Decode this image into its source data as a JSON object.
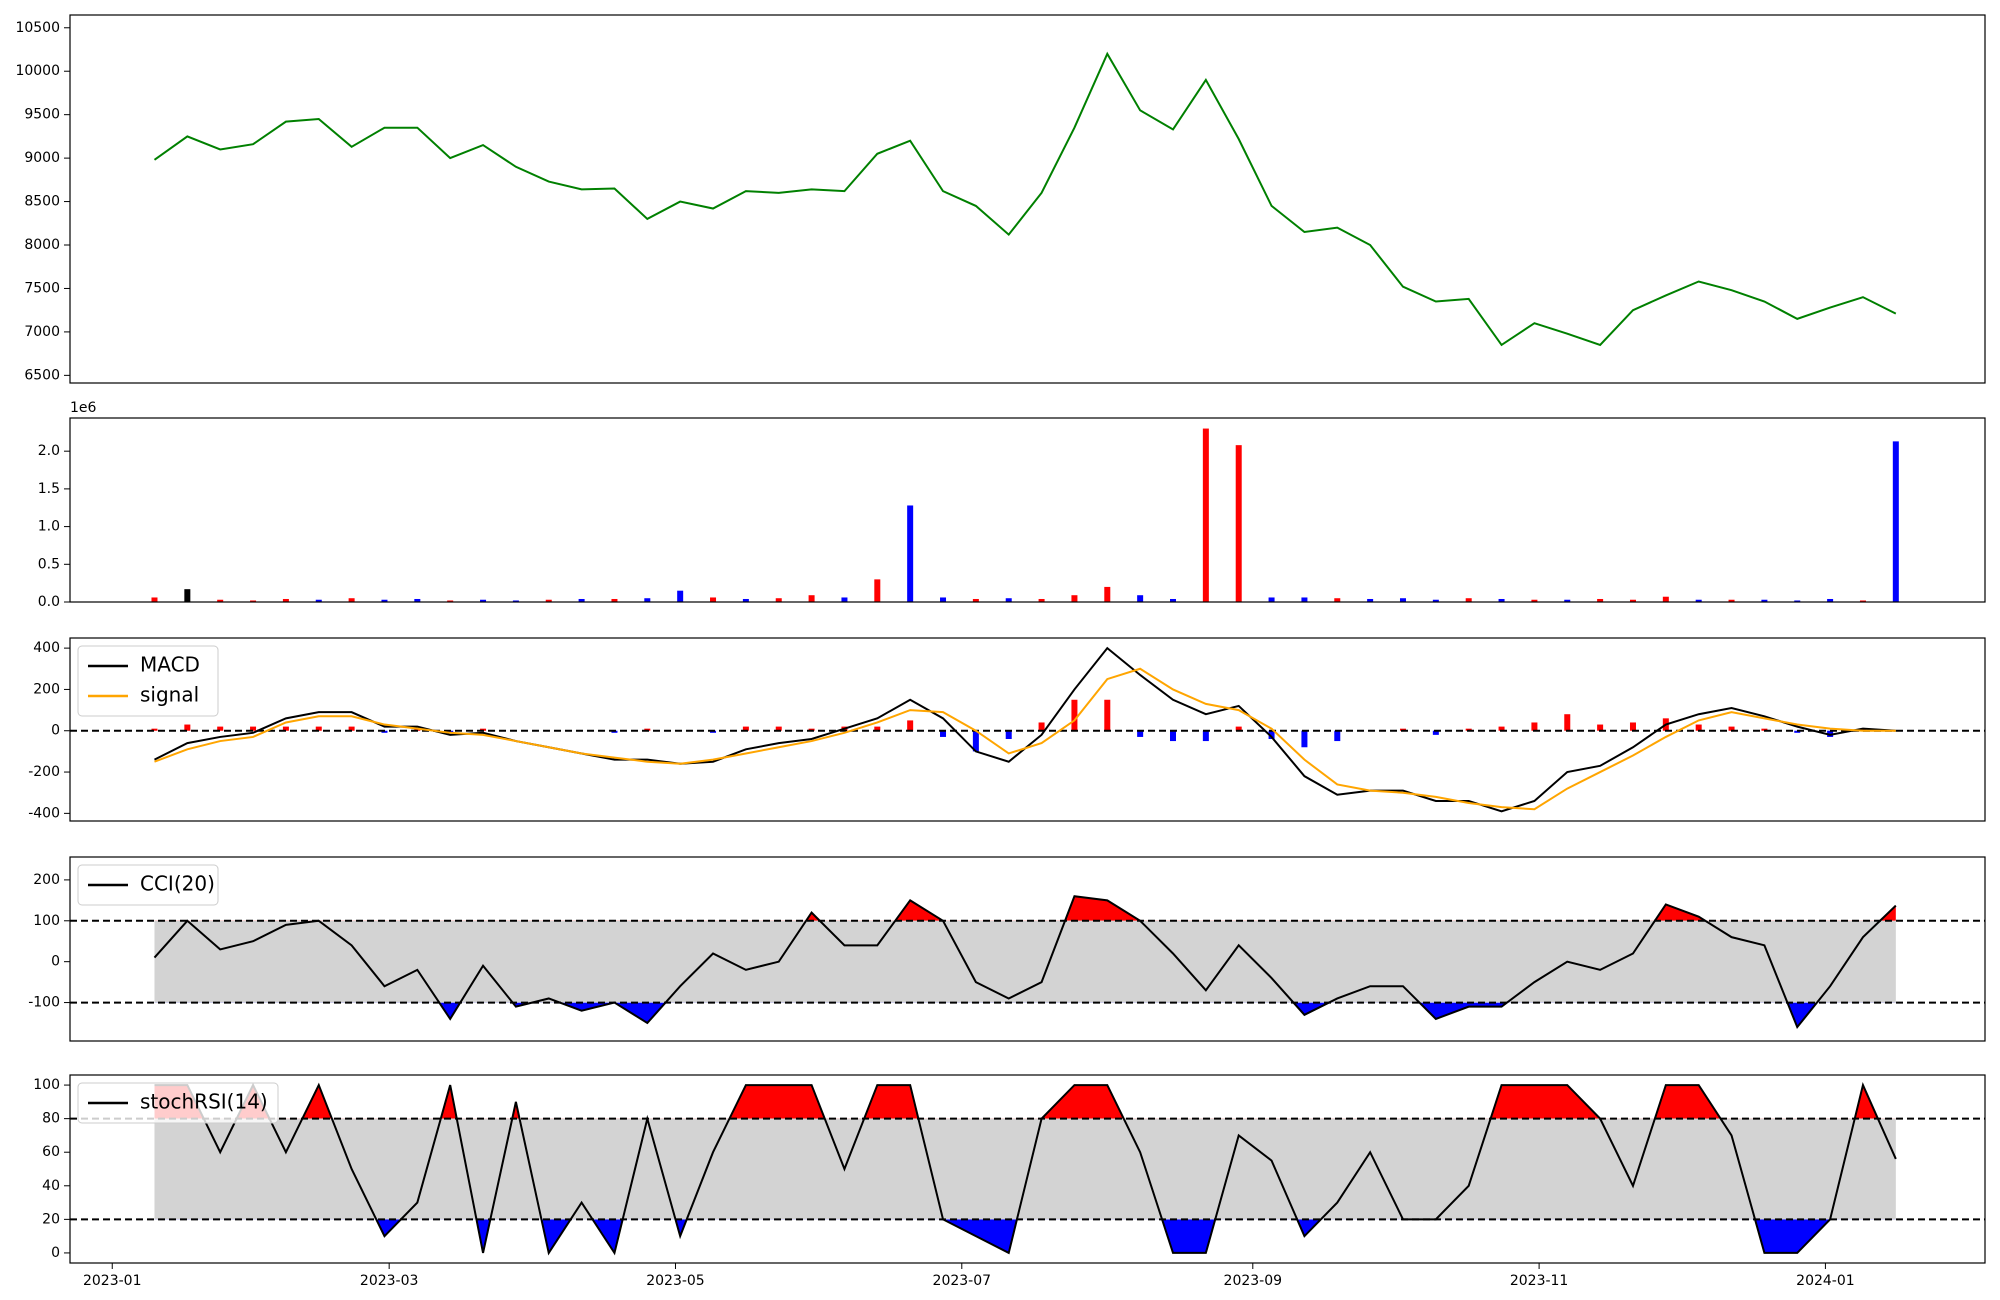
{
  "chart_data": [
    {
      "type": "line",
      "x": [
        9,
        16,
        23,
        30,
        37,
        44,
        51,
        58,
        65,
        72,
        79,
        86,
        93,
        100,
        107,
        114,
        121,
        128,
        135,
        142,
        149,
        156,
        163,
        170,
        177,
        184,
        191,
        198,
        205,
        212,
        219,
        226,
        233,
        240,
        247,
        254,
        261,
        268,
        275,
        282,
        289,
        296,
        303,
        310,
        317,
        324,
        331,
        338,
        345,
        352,
        359,
        366,
        373,
        380
      ],
      "xlim": [
        -9,
        399
      ],
      "series": [
        {
          "color": "#008000",
          "values": [
            8980,
            9250,
            9100,
            9160,
            9420,
            9450,
            9130,
            9350,
            9350,
            9000,
            9150,
            8900,
            8730,
            8640,
            8650,
            8300,
            8500,
            8420,
            8620,
            8600,
            8640,
            8620,
            9050,
            9200,
            8620,
            8450,
            8120,
            8600,
            9350,
            10200,
            9550,
            9330,
            9900,
            9220,
            8450,
            8150,
            8200,
            8000,
            7520,
            7350,
            7380,
            6850,
            7100,
            6980,
            6850,
            7250,
            7420,
            7580,
            7480,
            7350,
            7150,
            7280,
            7400,
            7210
          ]
        }
      ],
      "ylim": [
        6412,
        10647
      ],
      "yticks": [
        6500,
        7000,
        7500,
        8000,
        8500,
        9000,
        9500,
        10000,
        10500
      ]
    },
    {
      "type": "bar",
      "x": [
        9,
        16,
        23,
        30,
        37,
        44,
        51,
        58,
        65,
        72,
        79,
        86,
        93,
        100,
        107,
        114,
        121,
        128,
        135,
        142,
        149,
        156,
        163,
        170,
        177,
        184,
        191,
        198,
        205,
        212,
        219,
        226,
        233,
        240,
        247,
        254,
        261,
        268,
        275,
        282,
        289,
        296,
        303,
        310,
        317,
        324,
        331,
        338,
        345,
        352,
        359,
        366,
        373,
        380
      ],
      "xlim": [
        -9,
        399
      ],
      "series": [
        {
          "values": [
            60000,
            170000,
            30000,
            20000,
            40000,
            30000,
            50000,
            30000,
            40000,
            20000,
            30000,
            20000,
            30000,
            40000,
            40000,
            50000,
            150000,
            60000,
            40000,
            50000,
            90000,
            60000,
            300000,
            1280000,
            60000,
            40000,
            50000,
            40000,
            90000,
            200000,
            90000,
            40000,
            2300000,
            2080000,
            60000,
            60000,
            50000,
            40000,
            50000,
            30000,
            50000,
            40000,
            30000,
            30000,
            40000,
            30000,
            70000,
            30000,
            30000,
            30000,
            20000,
            40000,
            20000,
            2130000
          ],
          "colors": [
            "#ff0000",
            "#000000",
            "#ff0000",
            "#ff0000",
            "#ff0000",
            "#0000ff",
            "#ff0000",
            "#0000ff",
            "#0000ff",
            "#ff0000",
            "#0000ff",
            "#0000ff",
            "#ff0000",
            "#0000ff",
            "#ff0000",
            "#0000ff",
            "#0000ff",
            "#ff0000",
            "#0000ff",
            "#ff0000",
            "#ff0000",
            "#0000ff",
            "#ff0000",
            "#0000ff",
            "#0000ff",
            "#ff0000",
            "#0000ff",
            "#ff0000",
            "#ff0000",
            "#ff0000",
            "#0000ff",
            "#0000ff",
            "#ff0000",
            "#ff0000",
            "#0000ff",
            "#0000ff",
            "#ff0000",
            "#0000ff",
            "#0000ff",
            "#0000ff",
            "#ff0000",
            "#0000ff",
            "#ff0000",
            "#0000ff",
            "#ff0000",
            "#ff0000",
            "#ff0000",
            "#0000ff",
            "#ff0000",
            "#0000ff",
            "#0000ff",
            "#0000ff",
            "#ff0000",
            "#0000ff"
          ]
        }
      ],
      "ylim": [
        0,
        2440000
      ],
      "yticks": [
        {
          "value": 0,
          "label": "0.0"
        },
        {
          "value": 500000,
          "label": "0.5"
        },
        {
          "value": 1000000,
          "label": "1.0"
        },
        {
          "value": 1500000,
          "label": "1.5"
        },
        {
          "value": 2000000,
          "label": "2.0"
        }
      ],
      "y_offset_label": "1e6"
    },
    {
      "type": "line",
      "x": [
        9,
        16,
        23,
        30,
        37,
        44,
        51,
        58,
        65,
        72,
        79,
        86,
        93,
        100,
        107,
        114,
        121,
        128,
        135,
        142,
        149,
        156,
        163,
        170,
        177,
        184,
        191,
        198,
        205,
        212,
        219,
        226,
        233,
        240,
        247,
        254,
        261,
        268,
        275,
        282,
        289,
        296,
        303,
        310,
        317,
        324,
        331,
        338,
        345,
        352,
        359,
        366,
        373,
        380
      ],
      "xlim": [
        -9,
        399
      ],
      "series": [
        {
          "name": "MACD",
          "color": "#000000",
          "values": [
            -140,
            -60,
            -30,
            -10,
            60,
            90,
            90,
            20,
            20,
            -20,
            -10,
            -50,
            -80,
            -110,
            -140,
            -140,
            -160,
            -150,
            -90,
            -60,
            -40,
            10,
            60,
            150,
            60,
            -100,
            -150,
            -20,
            200,
            400,
            270,
            150,
            80,
            120,
            -30,
            -220,
            -310,
            -290,
            -290,
            -340,
            -340,
            -390,
            -340,
            -200,
            -170,
            -80,
            30,
            80,
            110,
            70,
            20,
            -20,
            10,
            0
          ]
        },
        {
          "name": "signal",
          "color": "#ffa500",
          "values": [
            -150,
            -90,
            -50,
            -30,
            40,
            70,
            70,
            30,
            10,
            -10,
            -20,
            -50,
            -80,
            -110,
            -130,
            -150,
            -160,
            -140,
            -110,
            -80,
            -50,
            -10,
            40,
            100,
            90,
            0,
            -110,
            -60,
            50,
            250,
            300,
            200,
            130,
            100,
            10,
            -140,
            -260,
            -290,
            -300,
            -320,
            -350,
            -370,
            -380,
            -280,
            -200,
            -120,
            -30,
            50,
            90,
            60,
            30,
            10,
            0,
            0
          ]
        }
      ],
      "histogram": {
        "pos_color": "#ff0000",
        "neg_color": "#0000ff",
        "values": [
          10,
          30,
          20,
          20,
          20,
          20,
          20,
          -10,
          10,
          -10,
          10,
          0,
          0,
          0,
          -10,
          10,
          0,
          -10,
          20,
          20,
          10,
          20,
          20,
          50,
          -30,
          -100,
          -40,
          40,
          150,
          150,
          -30,
          -50,
          -50,
          20,
          -40,
          -80,
          -50,
          0,
          10,
          -20,
          10,
          20,
          40,
          80,
          30,
          40,
          60,
          30,
          20,
          10,
          -10,
          -30,
          10,
          0
        ]
      },
      "reference_lines": [
        0
      ],
      "ylim": [
        -437,
        449
      ],
      "yticks": [
        -400,
        -200,
        0,
        200,
        400
      ],
      "legend": "upper left"
    },
    {
      "type": "line",
      "x": [
        9,
        16,
        23,
        30,
        37,
        44,
        51,
        58,
        65,
        72,
        79,
        86,
        93,
        100,
        107,
        114,
        121,
        128,
        135,
        142,
        149,
        156,
        163,
        170,
        177,
        184,
        191,
        198,
        205,
        212,
        219,
        226,
        233,
        240,
        247,
        254,
        261,
        268,
        275,
        282,
        289,
        296,
        303,
        310,
        317,
        324,
        331,
        338,
        345,
        352,
        359,
        366,
        373,
        380
      ],
      "xlim": [
        -9,
        399
      ],
      "series": [
        {
          "name": "CCI(20)",
          "color": "#000000",
          "values": [
            10,
            100,
            30,
            50,
            90,
            100,
            40,
            -60,
            -20,
            -140,
            -10,
            -110,
            -90,
            -120,
            -100,
            -150,
            -60,
            20,
            -20,
            0,
            120,
            40,
            40,
            150,
            100,
            -50,
            -90,
            -50,
            160,
            150,
            100,
            20,
            -70,
            40,
            -40,
            -130,
            -90,
            -60,
            -60,
            -140,
            -110,
            -110,
            -50,
            0,
            -20,
            20,
            140,
            110,
            60,
            40,
            -160,
            -60,
            60,
            137
          ]
        }
      ],
      "reference_lines": [
        -100,
        100
      ],
      "fill": {
        "band_color": "#d3d3d3",
        "upper_color": "#ff0000",
        "lower_color": "#0000ff"
      },
      "ylim": [
        -194,
        256
      ],
      "yticks": [
        -100,
        0,
        100,
        200
      ],
      "legend": "upper left"
    },
    {
      "type": "line",
      "x": [
        9,
        16,
        23,
        30,
        37,
        44,
        51,
        58,
        65,
        72,
        79,
        86,
        93,
        100,
        107,
        114,
        121,
        128,
        135,
        142,
        149,
        156,
        163,
        170,
        177,
        184,
        191,
        198,
        205,
        212,
        219,
        226,
        233,
        240,
        247,
        254,
        261,
        268,
        275,
        282,
        289,
        296,
        303,
        310,
        317,
        324,
        331,
        338,
        345,
        352,
        359,
        366,
        373,
        380
      ],
      "xlim": [
        -9,
        399
      ],
      "series": [
        {
          "name": "stochRSI(14)",
          "color": "#000000",
          "values": [
            100,
            100,
            60,
            100,
            60,
            100,
            50,
            10,
            30,
            100,
            0,
            90,
            0,
            30,
            0,
            80,
            10,
            60,
            100,
            100,
            100,
            50,
            100,
            100,
            20,
            10,
            0,
            80,
            100,
            100,
            60,
            0,
            0,
            70,
            55,
            10,
            30,
            60,
            20,
            20,
            40,
            100,
            100,
            100,
            80,
            40,
            100,
            100,
            70,
            0,
            0,
            20,
            100,
            56
          ]
        }
      ],
      "reference_lines": [
        20,
        80
      ],
      "fill": {
        "band_color": "#d3d3d3",
        "upper_color": "#ff0000",
        "lower_color": "#0000ff"
      },
      "ylim": [
        -6,
        106
      ],
      "yticks": [
        0,
        20,
        40,
        60,
        80,
        100
      ],
      "legend": "upper left",
      "xticks": [
        {
          "value": 0,
          "label": "2023-01"
        },
        {
          "value": 59,
          "label": "2023-03"
        },
        {
          "value": 120,
          "label": "2023-05"
        },
        {
          "value": 181,
          "label": "2023-07"
        },
        {
          "value": 243,
          "label": "2023-09"
        },
        {
          "value": 304,
          "label": "2023-11"
        },
        {
          "value": 365,
          "label": "2024-01"
        }
      ]
    }
  ]
}
